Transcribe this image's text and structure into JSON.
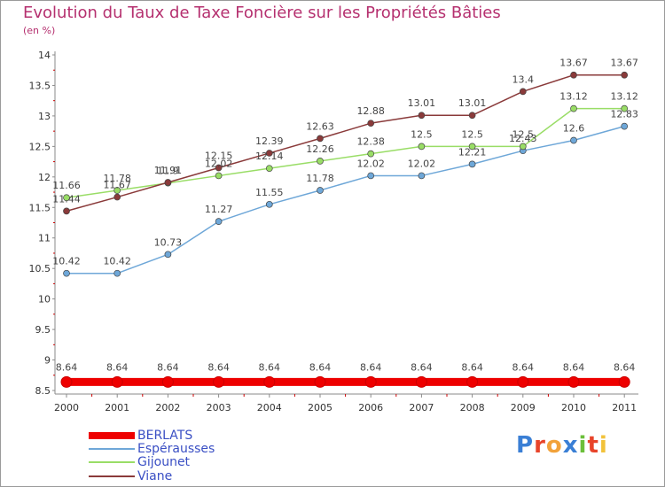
{
  "chart_data": {
    "type": "line",
    "title": "Evolution du Taux de Taxe Foncière sur les Propriétés Bâties",
    "subtitle": "(en %)",
    "xlabel": "",
    "ylabel": "",
    "categories": [
      "2000",
      "2001",
      "2002",
      "2003",
      "2004",
      "2005",
      "2006",
      "2007",
      "2008",
      "2009",
      "2010",
      "2011"
    ],
    "ylim": [
      8.5,
      14
    ],
    "yticks": [
      "8.5",
      "9",
      "9.5",
      "10",
      "10.5",
      "11",
      "11.5",
      "12",
      "12.5",
      "13",
      "13.5",
      "14"
    ],
    "grid": false,
    "series": [
      {
        "name": "BERLATS",
        "color": "#ee0000",
        "labels": [
          "8.64",
          "8.64",
          "8.64",
          "8.64",
          "8.64",
          "8.64",
          "8.64",
          "8.64",
          "8.64",
          "8.64",
          "8.64",
          "8.64"
        ],
        "values": [
          8.64,
          8.64,
          8.64,
          8.64,
          8.64,
          8.64,
          8.64,
          8.64,
          8.64,
          8.64,
          8.64,
          8.64
        ]
      },
      {
        "name": "Espérausses",
        "color": "#6ea7d8",
        "labels": [
          "10.42",
          "10.42",
          "10.73",
          "11.27",
          "11.55",
          "11.78",
          "12.02",
          "12.02",
          "12.21",
          "12.43",
          "12.6",
          "12.83"
        ],
        "values": [
          10.42,
          10.42,
          10.73,
          11.27,
          11.55,
          11.78,
          12.02,
          12.02,
          12.21,
          12.43,
          12.6,
          12.83
        ]
      },
      {
        "name": "Gijounet",
        "color": "#99dd66",
        "labels": [
          "11.66",
          "11.78",
          "11.9",
          "12.02",
          "12.14",
          "12.26",
          "12.38",
          "12.5",
          "12.5",
          "12.5",
          "13.12",
          "13.12"
        ],
        "values": [
          11.66,
          11.78,
          11.9,
          12.02,
          12.14,
          12.26,
          12.38,
          12.5,
          12.5,
          12.5,
          13.12,
          13.12
        ]
      },
      {
        "name": "Viane",
        "color": "#8a3a3a",
        "labels": [
          "11.44",
          "11.67",
          "11.91",
          "12.15",
          "12.39",
          "12.63",
          "12.88",
          "13.01",
          "13.01",
          "13.4",
          "13.67",
          "13.67"
        ],
        "values": [
          11.44,
          11.67,
          11.91,
          12.15,
          12.39,
          12.63,
          12.88,
          13.01,
          13.01,
          13.4,
          13.67,
          13.67
        ]
      }
    ]
  },
  "logo": {
    "text": "Proxiti",
    "letters": [
      "P",
      "r",
      "o",
      "x",
      "i",
      "t",
      "i"
    ],
    "colors": [
      "#3a7fd5",
      "#e8442a",
      "#f2a23a",
      "#3a7fd5",
      "#6bbf3a",
      "#e8442a",
      "#f2c23a"
    ]
  }
}
